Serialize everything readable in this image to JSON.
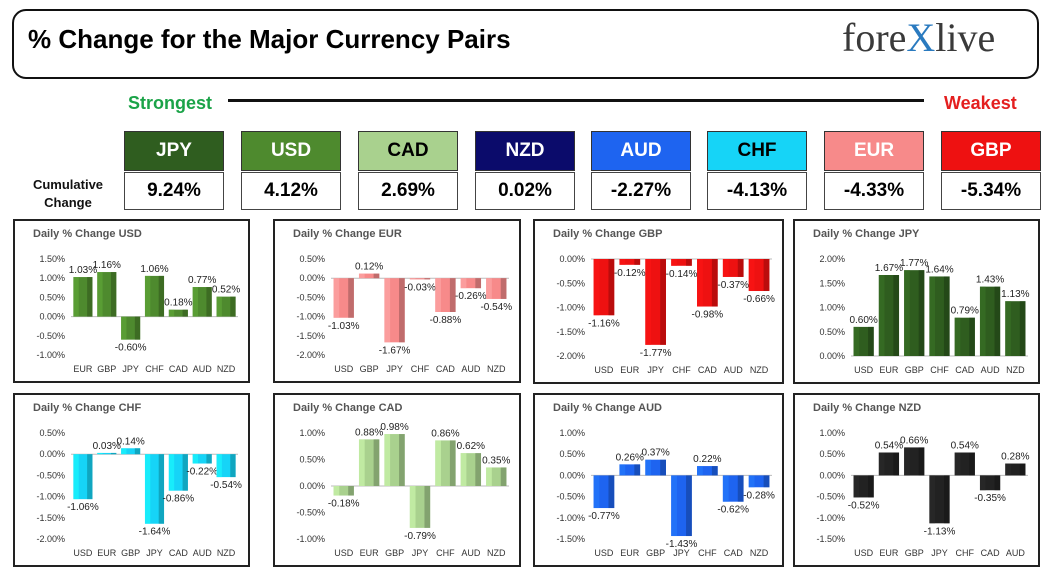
{
  "header": {
    "title": "% Change for the Major Currency Pairs",
    "logo_left": "fore",
    "logo_x": "X",
    "logo_right": "live"
  },
  "ranking": {
    "strongest": "Strongest",
    "weakest": "Weakest",
    "cumulative_label_1": "Cumulative",
    "cumulative_label_2": "Change",
    "currencies": [
      {
        "code": "JPY",
        "cumulative": "9.24%",
        "bg": "#2f5d1f",
        "fg": "#ffffff"
      },
      {
        "code": "USD",
        "cumulative": "4.12%",
        "bg": "#4e8a2e",
        "fg": "#ffffff"
      },
      {
        "code": "CAD",
        "cumulative": "2.69%",
        "bg": "#a9d18e",
        "fg": "#000000"
      },
      {
        "code": "NZD",
        "cumulative": "0.02%",
        "bg": "#0b0b6b",
        "fg": "#ffffff"
      },
      {
        "code": "AUD",
        "cumulative": "-2.27%",
        "bg": "#1e64f0",
        "fg": "#ffffff"
      },
      {
        "code": "CHF",
        "cumulative": "-4.13%",
        "bg": "#16d4f7",
        "fg": "#000000"
      },
      {
        "code": "EUR",
        "cumulative": "-4.33%",
        "bg": "#f78a8a",
        "fg": "#ffffff"
      },
      {
        "code": "GBP",
        "cumulative": "-5.34%",
        "bg": "#ee1111",
        "fg": "#ffffff"
      }
    ]
  },
  "chart_data": [
    {
      "type": "bar",
      "title": "Daily % Change USD",
      "categories": [
        "EUR",
        "GBP",
        "JPY",
        "CHF",
        "CAD",
        "AUD",
        "NZD"
      ],
      "values": [
        1.03,
        1.16,
        -0.6,
        1.06,
        0.18,
        0.77,
        0.52
      ],
      "labels": [
        "1.03%",
        "1.16%",
        "-0.60%",
        "1.06%",
        "0.18%",
        "0.77%",
        "0.52%"
      ],
      "yticks": [
        "1.50%",
        "1.00%",
        "0.50%",
        "0.00%",
        "-0.50%",
        "-1.00%"
      ],
      "ylim": [
        -1.0,
        1.5
      ],
      "color": "#4e8a2e"
    },
    {
      "type": "bar",
      "title": "Daily % Change EUR",
      "categories": [
        "USD",
        "GBP",
        "JPY",
        "CHF",
        "CAD",
        "AUD",
        "NZD"
      ],
      "values": [
        -1.03,
        0.12,
        -1.67,
        -0.03,
        -0.88,
        -0.26,
        -0.54
      ],
      "labels": [
        "-1.03%",
        "0.12%",
        "-1.67%",
        "-0.03%",
        "-0.88%",
        "-0.26%",
        "-0.54%"
      ],
      "yticks": [
        "0.50%",
        "0.00%",
        "-0.50%",
        "-1.00%",
        "-1.50%",
        "-2.00%"
      ],
      "ylim": [
        -2.0,
        0.5
      ],
      "color": "#f78a8a"
    },
    {
      "type": "bar",
      "title": "Daily % Change GBP",
      "categories": [
        "USD",
        "EUR",
        "JPY",
        "CHF",
        "CAD",
        "AUD",
        "NZD"
      ],
      "values": [
        -1.16,
        -0.12,
        -1.77,
        -0.14,
        -0.98,
        -0.37,
        -0.66
      ],
      "labels": [
        "-1.16%",
        "-0.12%",
        "-1.77%",
        "-0.14%",
        "-0.98%",
        "-0.37%",
        "-0.66%"
      ],
      "yticks": [
        "0.00%",
        "-0.50%",
        "-1.00%",
        "-1.50%",
        "-2.00%"
      ],
      "ylim": [
        -2.0,
        0.0
      ],
      "color": "#ee1111"
    },
    {
      "type": "bar",
      "title": "Daily % Change JPY",
      "categories": [
        "USD",
        "EUR",
        "GBP",
        "CHF",
        "CAD",
        "AUD",
        "NZD"
      ],
      "values": [
        0.6,
        1.67,
        1.77,
        1.64,
        0.79,
        1.43,
        1.13
      ],
      "labels": [
        "0.60%",
        "1.67%",
        "1.77%",
        "1.64%",
        "0.79%",
        "1.43%",
        "1.13%"
      ],
      "yticks": [
        "2.00%",
        "1.50%",
        "1.00%",
        "0.50%",
        "0.00%"
      ],
      "ylim": [
        0.0,
        2.0
      ],
      "color": "#2f5d1f"
    },
    {
      "type": "bar",
      "title": "Daily % Change CHF",
      "categories": [
        "USD",
        "EUR",
        "GBP",
        "JPY",
        "CAD",
        "AUD",
        "NZD"
      ],
      "values": [
        -1.06,
        0.03,
        0.14,
        -1.64,
        -0.86,
        -0.22,
        -0.54
      ],
      "labels": [
        "-1.06%",
        "0.03%",
        "0.14%",
        "-1.64%",
        "-0.86%",
        "-0.22%",
        "-0.54%"
      ],
      "yticks": [
        "0.50%",
        "0.00%",
        "-0.50%",
        "-1.00%",
        "-1.50%",
        "-2.00%"
      ],
      "ylim": [
        -2.0,
        0.5
      ],
      "color": "#16d4f7"
    },
    {
      "type": "bar",
      "title": "Daily % Change CAD",
      "categories": [
        "USD",
        "EUR",
        "GBP",
        "JPY",
        "CHF",
        "AUD",
        "NZD"
      ],
      "values": [
        -0.18,
        0.88,
        0.98,
        -0.79,
        0.86,
        0.62,
        0.35
      ],
      "labels": [
        "-0.18%",
        "0.88%",
        "0.98%",
        "-0.79%",
        "0.86%",
        "0.62%",
        "0.35%"
      ],
      "yticks": [
        "1.00%",
        "0.50%",
        "0.00%",
        "-0.50%",
        "-1.00%"
      ],
      "ylim": [
        -1.0,
        1.0
      ],
      "color": "#a9d18e"
    },
    {
      "type": "bar",
      "title": "Daily % Change AUD",
      "categories": [
        "USD",
        "EUR",
        "GBP",
        "JPY",
        "CHF",
        "CAD",
        "NZD"
      ],
      "values": [
        -0.77,
        0.26,
        0.37,
        -1.43,
        0.22,
        -0.62,
        -0.28
      ],
      "labels": [
        "-0.77%",
        "0.26%",
        "0.37%",
        "-1.43%",
        "0.22%",
        "-0.62%",
        "-0.28%"
      ],
      "yticks": [
        "1.00%",
        "0.50%",
        "0.00%",
        "-0.50%",
        "-1.00%",
        "-1.50%"
      ],
      "ylim": [
        -1.5,
        1.0
      ],
      "color": "#1e64f0"
    },
    {
      "type": "bar",
      "title": "Daily % Change NZD",
      "categories": [
        "USD",
        "EUR",
        "GBP",
        "JPY",
        "CHF",
        "CAD",
        "AUD"
      ],
      "values": [
        -0.52,
        0.54,
        0.66,
        -1.13,
        0.54,
        -0.35,
        0.28
      ],
      "labels": [
        "-0.52%",
        "0.54%",
        "0.66%",
        "-1.13%",
        "0.54%",
        "-0.35%",
        "0.28%"
      ],
      "yticks": [
        "1.00%",
        "0.50%",
        "0.00%",
        "-0.50%",
        "-1.00%",
        "-1.50%"
      ],
      "ylim": [
        -1.5,
        1.0
      ],
      "color": "#222222"
    }
  ]
}
